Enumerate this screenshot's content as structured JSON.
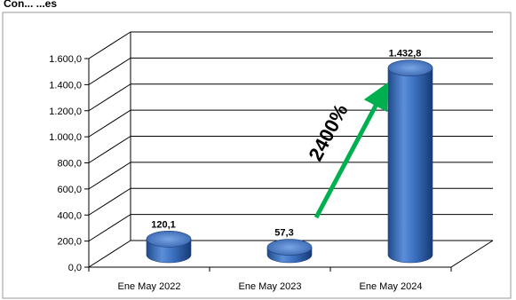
{
  "chart_data": {
    "type": "bar",
    "title": "",
    "xlabel": "",
    "ylabel": "",
    "categories": [
      "Ene May 2022",
      "Ene May 2023",
      "Ene May 2024"
    ],
    "values": [
      120.1,
      57.3,
      1432.8
    ],
    "value_labels": [
      "120,1",
      "57,3",
      "1.432,8"
    ],
    "ylim": [
      0,
      1600
    ],
    "yticks": [
      0,
      200,
      400,
      600,
      800,
      1000,
      1200,
      1400,
      1600
    ],
    "ytick_labels": [
      "0,0",
      "200,0",
      "400,0",
      "600,0",
      "800,0",
      "1.000,0",
      "1.200,0",
      "1.400,0",
      "1.600,0"
    ],
    "grid": true,
    "style": "3d-cylinder",
    "bar_color": "#3b6fc0",
    "annotation": {
      "text": "2400%",
      "color": "#00b050"
    },
    "header_fragment": "Con... ...es"
  }
}
